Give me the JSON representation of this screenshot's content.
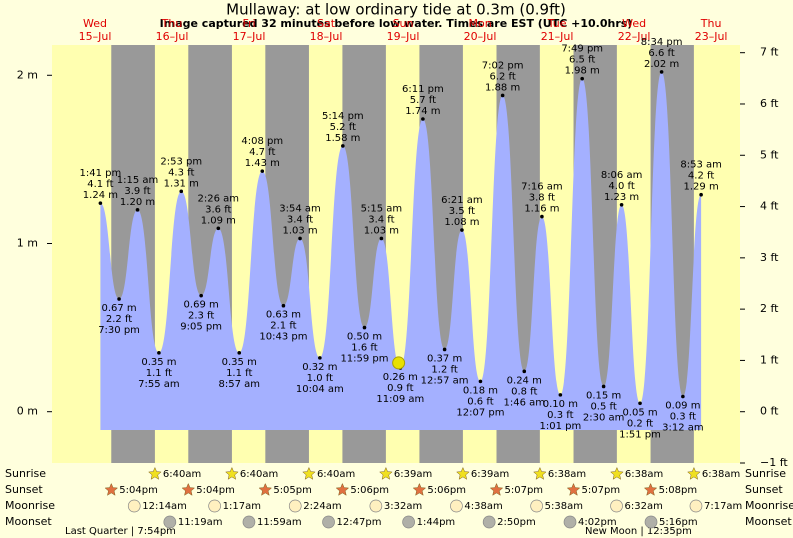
{
  "chart_data": {
    "type": "tide",
    "title": "Mullaway: at low  ordinary tide at 0.3m (0.9ft)",
    "subtitle": "Image captured 32 minutes before low water. Times are EST (UTC +10.0hrs)",
    "xlim": [
      -1.4,
      213
    ],
    "ylim": [
      -0.305,
      2.18
    ],
    "yticks": [
      {
        "value": 0,
        "label": "0 m"
      },
      {
        "value": 1,
        "label": "1 m"
      },
      {
        "value": 2,
        "label": "2 m"
      }
    ],
    "y2lim": [
      -1,
      7.15
    ],
    "y2ticks": [
      {
        "value": -1,
        "label": "−1 ft"
      },
      {
        "value": 0,
        "label": "0 ft"
      },
      {
        "value": 1,
        "label": "1 ft"
      },
      {
        "value": 2,
        "label": "2 ft"
      },
      {
        "value": 3,
        "label": "3 ft"
      },
      {
        "value": 4,
        "label": "4 ft"
      },
      {
        "value": 5,
        "label": "5 ft"
      },
      {
        "value": 6,
        "label": "6 ft"
      },
      {
        "value": 7,
        "label": "7 ft"
      }
    ],
    "days": [
      {
        "name": "Wed",
        "date": "15–Jul"
      },
      {
        "name": "Thu",
        "date": "16–Jul"
      },
      {
        "name": "Fri",
        "date": "17–Jul"
      },
      {
        "name": "Sat",
        "date": "18–Jul"
      },
      {
        "name": "Sun",
        "date": "19–Jul"
      },
      {
        "name": "Mon",
        "date": "20–Jul"
      },
      {
        "name": "Tue",
        "date": "21–Jul"
      },
      {
        "name": "Wed",
        "date": "22–Jul"
      },
      {
        "name": "Thu",
        "date": "23–Jul"
      }
    ],
    "color": "#a4b0ff",
    "tide": {
      "x": [
        13.68,
        19.5,
        25.25,
        31.92,
        38.88,
        45.08,
        50.43,
        56.95,
        64.13,
        70.72,
        75.9,
        82.07,
        89.23,
        95.98,
        101.25,
        107.15,
        114.18,
        120.95,
        126.35,
        132.12,
        139.03,
        145.77,
        151.27,
        157.02,
        163.82,
        170.5,
        176.1,
        181.85,
        188.57,
        195.2,
        200.88
      ],
      "values": [
        1.24,
        0.67,
        1.2,
        0.35,
        1.31,
        0.69,
        1.09,
        0.35,
        1.43,
        0.63,
        1.03,
        0.32,
        1.58,
        0.5,
        1.03,
        0.26,
        1.74,
        0.37,
        1.08,
        0.18,
        1.88,
        0.24,
        1.16,
        0.1,
        1.98,
        0.15,
        1.23,
        0.05,
        2.02,
        0.09,
        1.29
      ],
      "value_labels": [
        "1.24 m",
        "0.67 m",
        "1.20 m",
        "0.35 m",
        "1.31 m",
        "0.69 m",
        "1.09 m",
        "0.35 m",
        "1.43 m",
        "0.63 m",
        "1.03 m",
        "0.32 m",
        "1.58 m",
        "0.50 m",
        "1.03 m",
        "0.26 m",
        "1.74 m",
        "0.37 m",
        "1.08 m",
        "0.18 m",
        "1.88 m",
        "0.24 m",
        "1.16 m",
        "0.10 m",
        "1.98 m",
        "0.15 m",
        "1.23 m",
        "0.05 m",
        "2.02 m",
        "0.09 m",
        "1.29 m"
      ],
      "ft_labels": [
        "4.1 ft",
        "2.2 ft",
        "3.9 ft",
        "1.1 ft",
        "4.3 ft",
        "2.3 ft",
        "3.6 ft",
        "1.1 ft",
        "4.7 ft",
        "2.1 ft",
        "3.4 ft",
        "1.0 ft",
        "5.2 ft",
        "1.6 ft",
        "3.4 ft",
        "0.9 ft",
        "5.7 ft",
        "1.2 ft",
        "3.5 ft",
        "0.6 ft",
        "6.2 ft",
        "0.8 ft",
        "3.8 ft",
        "0.3 ft",
        "6.5 ft",
        "0.5 ft",
        "4.0 ft",
        "0.2 ft",
        "6.6 ft",
        "0.3 ft",
        "4.2 ft"
      ],
      "times": [
        "1:41 pm",
        "7:30 pm",
        "1:15 am",
        "7:55 am",
        "2:53 pm",
        "9:05 pm",
        "2:26 am",
        "8:57 am",
        "4:08 pm",
        "10:43 pm",
        "3:54 am",
        "10:04 am",
        "5:14 pm",
        "11:59 pm",
        "5:15 am",
        "11:09 am",
        "6:11 pm",
        "12:57 am",
        "6:21 am",
        "12:07 pm",
        "7:02 pm",
        "1:46 am",
        "7:16 am",
        "1:01 pm",
        "7:49 pm",
        "2:30 am",
        "8:06 am",
        "1:51 pm",
        "8:34 pm",
        "3:12 am",
        "8:53 am"
      ]
    },
    "marker": {
      "x": 106.62,
      "value": 0.29,
      "color": "#e8e000"
    },
    "events": [
      {
        "name": "Sunrise",
        "icon": "star",
        "color": "#f0e020",
        "x": [
          30.67,
          54.67,
          78.67,
          102.65,
          126.65,
          150.63,
          174.63,
          198.63
        ],
        "times": [
          "6:40am",
          "6:40am",
          "6:40am",
          "6:39am",
          "6:39am",
          "6:38am",
          "6:38am",
          "6:38am"
        ]
      },
      {
        "name": "Sunset",
        "icon": "star",
        "color": "#e07040",
        "x": [
          17.07,
          41.07,
          65.08,
          89.1,
          113.1,
          137.12,
          161.12,
          185.13
        ],
        "times": [
          "5:04pm",
          "5:04pm",
          "5:05pm",
          "5:06pm",
          "5:06pm",
          "5:07pm",
          "5:07pm",
          "5:08pm"
        ]
      },
      {
        "name": "Moonrise",
        "icon": "circle",
        "color": "#fff0c0",
        "x": [
          24.23,
          49.28,
          74.4,
          99.53,
          124.63,
          149.63,
          174.53,
          199.28
        ],
        "times": [
          "12:14am",
          "1:17am",
          "2:24am",
          "3:32am",
          "4:38am",
          "5:38am",
          "6:32am",
          "7:17am"
        ]
      },
      {
        "name": "Moonset",
        "icon": "circle",
        "color": "#b0b0a8",
        "x": [
          35.32,
          59.98,
          84.78,
          109.73,
          134.83,
          160.03,
          185.27
        ],
        "times": [
          "11:19am",
          "11:59am",
          "12:47pm",
          "1:44pm",
          "2:50pm",
          "4:02pm",
          "5:16pm"
        ]
      }
    ],
    "moon_phases": [
      "Last Quarter | 7:54pm",
      "New Moon | 12:35pm"
    ]
  }
}
